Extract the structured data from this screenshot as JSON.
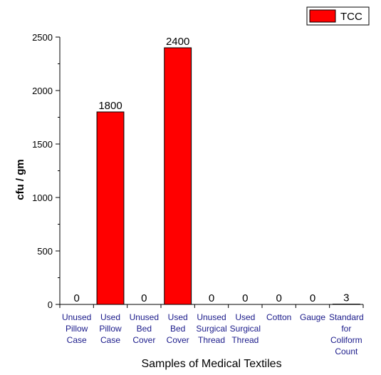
{
  "chart_data": {
    "type": "bar",
    "categories": [
      "Unused Pillow Case",
      "Used Pillow Case",
      "Unused Bed Cover",
      "Used Bed Cover",
      "Unused Surgical Thread",
      "Used Surgical Thread",
      "Cotton",
      "Gauge",
      "Standard for Coliform Count"
    ],
    "category_lines": [
      [
        "Unused",
        "Pillow",
        "Case"
      ],
      [
        "Used",
        "Pillow",
        "Case"
      ],
      [
        "Unused",
        "Bed",
        "Cover"
      ],
      [
        "Used",
        "Bed",
        "Cover"
      ],
      [
        "Unused",
        "Surgical",
        "Thread"
      ],
      [
        "Used",
        "Surgical",
        "Thread"
      ],
      [
        "Cotton"
      ],
      [
        "Gauge"
      ],
      [
        "Standard",
        "for",
        "Coliform",
        "Count"
      ]
    ],
    "series": [
      {
        "name": "TCC",
        "values": [
          0,
          1800,
          0,
          2400,
          0,
          0,
          0,
          0,
          3
        ],
        "color": "#ff0000"
      }
    ],
    "data_labels": [
      "0",
      "1800",
      "0",
      "2400",
      "0",
      "0",
      "0",
      "0",
      "3"
    ],
    "xlabel": "Samples of Medical Textiles",
    "ylabel": "cfu / gm",
    "ylim": [
      0,
      2500
    ],
    "yticks": [
      0,
      500,
      1000,
      1500,
      2000,
      2500
    ],
    "grid": false,
    "legend_position": "top-right"
  }
}
